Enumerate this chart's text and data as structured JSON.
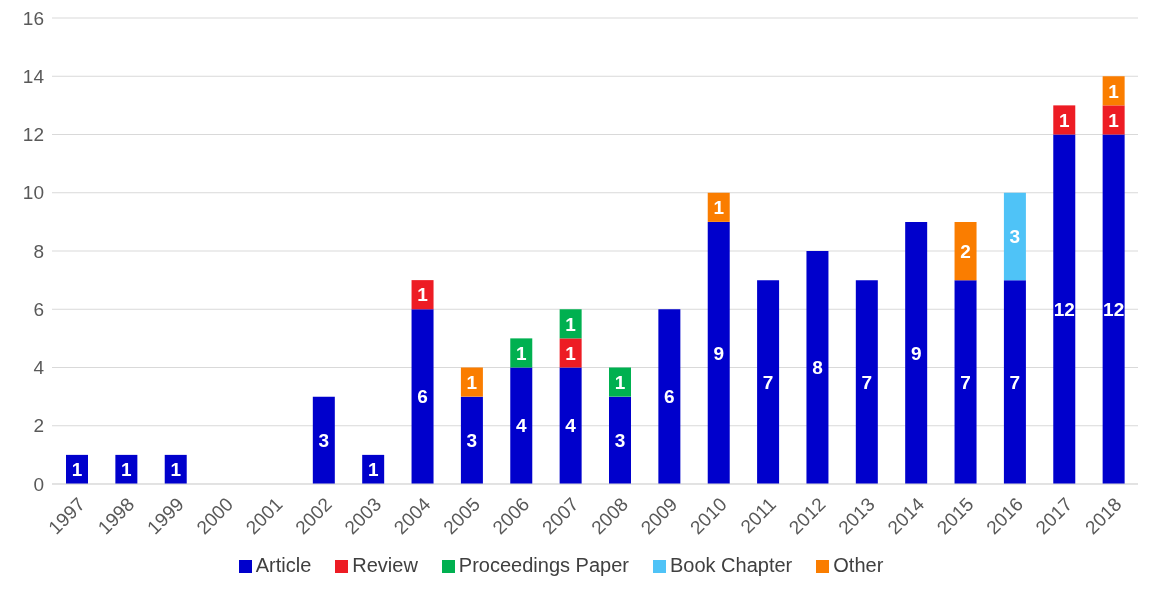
{
  "chart_data": {
    "type": "bar",
    "stacked": true,
    "categories": [
      "1997",
      "1998",
      "1999",
      "2000",
      "2001",
      "2002",
      "2003",
      "2004",
      "2005",
      "2006",
      "2007",
      "2008",
      "2009",
      "2010",
      "2011",
      "2012",
      "2013",
      "2014",
      "2015",
      "2016",
      "2017",
      "2018"
    ],
    "series": [
      {
        "name": "Article",
        "color": "#0000cc",
        "values": [
          1,
          1,
          1,
          null,
          null,
          3,
          1,
          6,
          3,
          4,
          4,
          3,
          6,
          9,
          7,
          8,
          7,
          9,
          7,
          7,
          12,
          12
        ]
      },
      {
        "name": "Review",
        "color": "#ed1c24",
        "values": [
          null,
          null,
          null,
          null,
          null,
          null,
          null,
          1,
          null,
          null,
          1,
          null,
          null,
          null,
          null,
          null,
          null,
          null,
          null,
          null,
          1,
          1
        ]
      },
      {
        "name": "Proceedings Paper",
        "color": "#00b050",
        "values": [
          null,
          null,
          null,
          null,
          null,
          null,
          null,
          null,
          null,
          1,
          1,
          1,
          null,
          null,
          null,
          null,
          null,
          null,
          null,
          null,
          null,
          null
        ]
      },
      {
        "name": "Book Chapter",
        "color": "#4fc3f7",
        "values": [
          null,
          null,
          null,
          null,
          null,
          null,
          null,
          null,
          null,
          null,
          null,
          null,
          null,
          null,
          null,
          null,
          null,
          null,
          null,
          3,
          null,
          null
        ]
      },
      {
        "name": "Other",
        "color": "#fa7d00",
        "values": [
          null,
          null,
          null,
          null,
          null,
          null,
          null,
          null,
          1,
          null,
          null,
          null,
          null,
          1,
          null,
          null,
          null,
          null,
          2,
          null,
          null,
          1
        ]
      }
    ],
    "ylim": [
      0,
      16
    ],
    "yticks": [
      0,
      2,
      4,
      6,
      8,
      10,
      12,
      14,
      16
    ],
    "grid": "y",
    "legend": "bottom",
    "data_labels": true
  }
}
